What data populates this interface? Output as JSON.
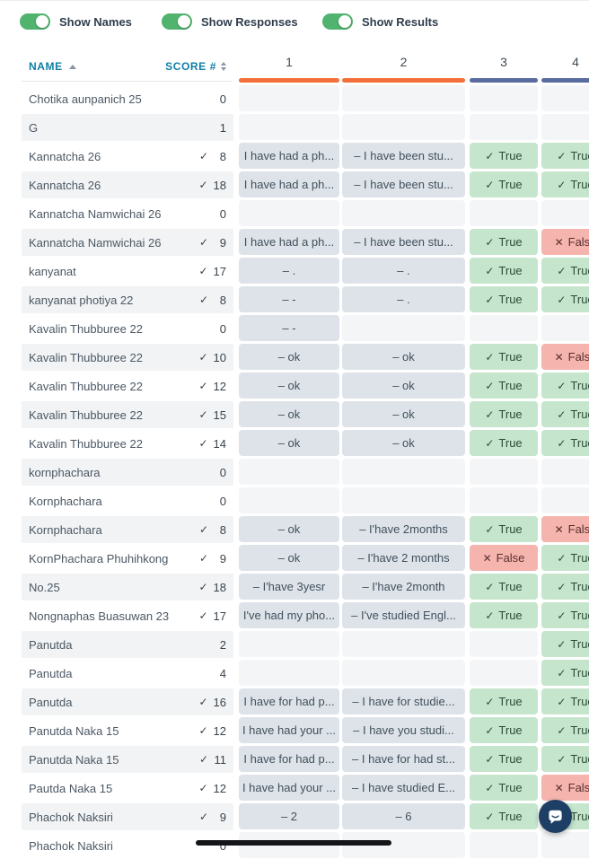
{
  "colors": {
    "accent_orange": "#f3703a",
    "accent_slate": "#5a6b9f",
    "toggle_green": "#50b36e",
    "header_teal": "#0f7ea6",
    "true_bg": "#c5e6cd",
    "false_bg": "#f5b4ae",
    "response_bg": "#dde3e9",
    "empty_bg": "#f4f5f7",
    "row_alt_bg": "#f1f3f4",
    "scrollbar": "#141518",
    "chat_bubble": "#1d3f66"
  },
  "toolbar": {
    "toggles": [
      {
        "label": "Show Names",
        "on": true
      },
      {
        "label": "Show Responses",
        "on": true
      },
      {
        "label": "Show Results",
        "on": true
      }
    ]
  },
  "table": {
    "name_header": "NAME",
    "score_header": "SCORE #",
    "questions": [
      {
        "label": "1",
        "accent": "orange"
      },
      {
        "label": "2",
        "accent": "orange"
      },
      {
        "label": "3",
        "accent": "slate"
      },
      {
        "label": "4",
        "accent": "slate"
      }
    ],
    "result_true_label": "True",
    "result_false_label": "False",
    "rows": [
      {
        "name": "Chotika aunpanich 25",
        "checked": false,
        "score": "0",
        "cells": [
          {
            "type": "empty"
          },
          {
            "type": "empty"
          },
          {
            "type": "empty"
          },
          {
            "type": "empty"
          }
        ]
      },
      {
        "name": "G",
        "checked": false,
        "score": "1",
        "cells": [
          {
            "type": "empty"
          },
          {
            "type": "empty"
          },
          {
            "type": "empty"
          },
          {
            "type": "empty"
          }
        ]
      },
      {
        "name": "Kannatcha 26",
        "checked": true,
        "score": "8",
        "cells": [
          {
            "type": "response",
            "text": "I have had a ph..."
          },
          {
            "type": "response",
            "text": "– I have been stu..."
          },
          {
            "type": "result",
            "correct": true
          },
          {
            "type": "result",
            "correct": true
          }
        ]
      },
      {
        "name": "Kannatcha 26",
        "checked": true,
        "score": "18",
        "cells": [
          {
            "type": "response",
            "text": "I have had a ph..."
          },
          {
            "type": "response",
            "text": "– I have been stu..."
          },
          {
            "type": "result",
            "correct": true
          },
          {
            "type": "result",
            "correct": true
          }
        ]
      },
      {
        "name": "Kannatcha Namwichai 26",
        "checked": false,
        "score": "0",
        "cells": [
          {
            "type": "empty"
          },
          {
            "type": "empty"
          },
          {
            "type": "empty"
          },
          {
            "type": "empty"
          }
        ]
      },
      {
        "name": "Kannatcha Namwichai 26",
        "checked": true,
        "score": "9",
        "cells": [
          {
            "type": "response",
            "text": "I have had a ph..."
          },
          {
            "type": "response",
            "text": "– I have been stu..."
          },
          {
            "type": "result",
            "correct": true
          },
          {
            "type": "result",
            "correct": false
          }
        ]
      },
      {
        "name": "kanyanat",
        "checked": true,
        "score": "17",
        "cells": [
          {
            "type": "response",
            "text": "– ."
          },
          {
            "type": "response",
            "text": "– ."
          },
          {
            "type": "result",
            "correct": true
          },
          {
            "type": "result",
            "correct": true
          }
        ]
      },
      {
        "name": "kanyanat photiya 22",
        "checked": true,
        "score": "8",
        "cells": [
          {
            "type": "response",
            "text": "– -"
          },
          {
            "type": "response",
            "text": "– ."
          },
          {
            "type": "result",
            "correct": true
          },
          {
            "type": "result",
            "correct": true
          }
        ]
      },
      {
        "name": "Kavalin Thubburee 22",
        "checked": false,
        "score": "0",
        "cells": [
          {
            "type": "response",
            "text": "– -"
          },
          {
            "type": "empty"
          },
          {
            "type": "empty"
          },
          {
            "type": "empty"
          }
        ]
      },
      {
        "name": "Kavalin Thubburee 22",
        "checked": true,
        "score": "10",
        "cells": [
          {
            "type": "response",
            "text": "– ok"
          },
          {
            "type": "response",
            "text": "– ok"
          },
          {
            "type": "result",
            "correct": true
          },
          {
            "type": "result",
            "correct": false
          }
        ]
      },
      {
        "name": "Kavalin Thubburee 22",
        "checked": true,
        "score": "12",
        "cells": [
          {
            "type": "response",
            "text": "– ok"
          },
          {
            "type": "response",
            "text": "– ok"
          },
          {
            "type": "result",
            "correct": true
          },
          {
            "type": "result",
            "correct": true
          }
        ]
      },
      {
        "name": "Kavalin Thubburee 22",
        "checked": true,
        "score": "15",
        "cells": [
          {
            "type": "response",
            "text": "– ok"
          },
          {
            "type": "response",
            "text": "– ok"
          },
          {
            "type": "result",
            "correct": true
          },
          {
            "type": "result",
            "correct": true
          }
        ]
      },
      {
        "name": "Kavalin Thubburee 22",
        "checked": true,
        "score": "14",
        "cells": [
          {
            "type": "response",
            "text": "– ok"
          },
          {
            "type": "response",
            "text": "– ok"
          },
          {
            "type": "result",
            "correct": true
          },
          {
            "type": "result",
            "correct": true
          }
        ]
      },
      {
        "name": "kornphachara",
        "checked": false,
        "score": "0",
        "cells": [
          {
            "type": "empty"
          },
          {
            "type": "empty"
          },
          {
            "type": "empty"
          },
          {
            "type": "empty"
          }
        ]
      },
      {
        "name": "Kornphachara",
        "checked": false,
        "score": "0",
        "cells": [
          {
            "type": "empty"
          },
          {
            "type": "empty"
          },
          {
            "type": "empty"
          },
          {
            "type": "empty"
          }
        ]
      },
      {
        "name": "Kornphachara",
        "checked": true,
        "score": "8",
        "cells": [
          {
            "type": "response",
            "text": "– ok"
          },
          {
            "type": "response",
            "text": "– I'have 2months"
          },
          {
            "type": "result",
            "correct": true
          },
          {
            "type": "result",
            "correct": false
          }
        ]
      },
      {
        "name": "KornPhachara Phuhihkong",
        "checked": true,
        "score": "9",
        "cells": [
          {
            "type": "response",
            "text": "– ok"
          },
          {
            "type": "response",
            "text": "– I'have 2 months"
          },
          {
            "type": "result",
            "correct": false
          },
          {
            "type": "result",
            "correct": true
          }
        ]
      },
      {
        "name": "No.25",
        "checked": true,
        "score": "18",
        "cells": [
          {
            "type": "response",
            "text": "– I'have 3yesr"
          },
          {
            "type": "response",
            "text": "– I'have 2month"
          },
          {
            "type": "result",
            "correct": true
          },
          {
            "type": "result",
            "correct": true
          }
        ]
      },
      {
        "name": "Nongnaphas Buasuwan 23",
        "checked": true,
        "score": "17",
        "cells": [
          {
            "type": "response",
            "text": "I've had my pho..."
          },
          {
            "type": "response",
            "text": "– I've studied Engl..."
          },
          {
            "type": "result",
            "correct": true
          },
          {
            "type": "result",
            "correct": true
          }
        ]
      },
      {
        "name": "Panutda",
        "checked": false,
        "score": "2",
        "cells": [
          {
            "type": "empty"
          },
          {
            "type": "empty"
          },
          {
            "type": "empty"
          },
          {
            "type": "result",
            "correct": true
          }
        ]
      },
      {
        "name": "Panutda",
        "checked": false,
        "score": "4",
        "cells": [
          {
            "type": "empty"
          },
          {
            "type": "empty"
          },
          {
            "type": "empty"
          },
          {
            "type": "result",
            "correct": true
          }
        ]
      },
      {
        "name": "Panutda",
        "checked": true,
        "score": "16",
        "cells": [
          {
            "type": "response",
            "text": "I have for had p..."
          },
          {
            "type": "response",
            "text": "– I have for studie..."
          },
          {
            "type": "result",
            "correct": true
          },
          {
            "type": "result",
            "correct": true
          }
        ]
      },
      {
        "name": "Panutda Naka 15",
        "checked": true,
        "score": "12",
        "cells": [
          {
            "type": "response",
            "text": "I have had your ..."
          },
          {
            "type": "response",
            "text": "– I have you studi..."
          },
          {
            "type": "result",
            "correct": true
          },
          {
            "type": "result",
            "correct": true
          }
        ]
      },
      {
        "name": "Panutda Naka 15",
        "checked": true,
        "score": "11",
        "cells": [
          {
            "type": "response",
            "text": "I have for had p..."
          },
          {
            "type": "response",
            "text": "– I have for had st..."
          },
          {
            "type": "result",
            "correct": true
          },
          {
            "type": "result",
            "correct": true
          }
        ]
      },
      {
        "name": "Pautda Naka 15",
        "checked": true,
        "score": "12",
        "cells": [
          {
            "type": "response",
            "text": "I have had your ..."
          },
          {
            "type": "response",
            "text": "– I have studied E..."
          },
          {
            "type": "result",
            "correct": true
          },
          {
            "type": "result",
            "correct": false
          }
        ]
      },
      {
        "name": "Phachok Naksiri",
        "checked": true,
        "score": "9",
        "cells": [
          {
            "type": "response",
            "text": "– 2"
          },
          {
            "type": "response",
            "text": "– 6"
          },
          {
            "type": "result",
            "correct": true
          },
          {
            "type": "result",
            "correct": true
          }
        ]
      },
      {
        "name": "Phachok Naksiri",
        "checked": false,
        "score": "0",
        "cells": [
          {
            "type": "empty"
          },
          {
            "type": "empty"
          },
          {
            "type": "empty"
          },
          {
            "type": "empty"
          }
        ]
      }
    ]
  }
}
